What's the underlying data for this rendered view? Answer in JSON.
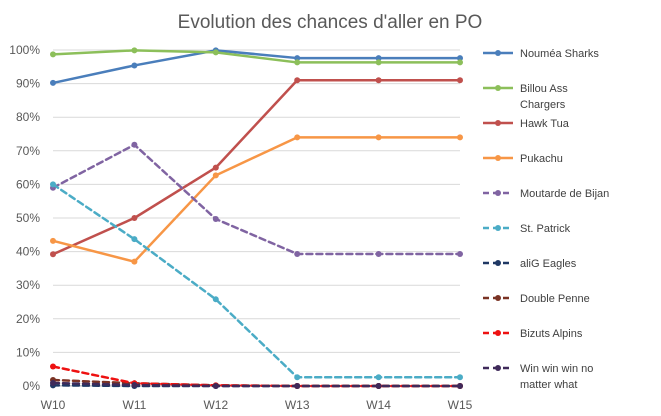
{
  "chart_data": {
    "type": "line",
    "title": "Evolution des chances d'aller en PO",
    "xlabel": "",
    "ylabel": "",
    "categories": [
      "W10",
      "W11",
      "W12",
      "W13",
      "W14",
      "W15"
    ],
    "ylim": [
      0,
      100
    ],
    "y_ticks": [
      "0%",
      "10%",
      "20%",
      "30%",
      "40%",
      "50%",
      "60%",
      "70%",
      "80%",
      "90%",
      "100%"
    ],
    "grid": "horizontal",
    "legend_position": "right",
    "series": [
      {
        "name": "Nouméa Sharks",
        "color": "#4a7ebb",
        "dashed": false,
        "values": [
          90.2,
          95.4,
          99.9,
          97.6,
          97.6,
          97.6
        ]
      },
      {
        "name": "Billou Ass Chargers",
        "color": "#8cbf5a",
        "dashed": false,
        "values": [
          98.7,
          99.9,
          99.3,
          96.3,
          96.3,
          96.3
        ]
      },
      {
        "name": "Hawk Tua",
        "color": "#c0504d",
        "dashed": false,
        "values": [
          39.2,
          50.0,
          65.0,
          91.0,
          91.0,
          91.0
        ]
      },
      {
        "name": "Pukachu",
        "color": "#f79646",
        "dashed": false,
        "values": [
          43.2,
          37.0,
          62.7,
          74.0,
          74.0,
          74.0
        ]
      },
      {
        "name": "Moutarde de Bijan",
        "color": "#8064a2",
        "dashed": true,
        "values": [
          59.0,
          71.8,
          49.7,
          39.3,
          39.3,
          39.3
        ]
      },
      {
        "name": "St. Patrick",
        "color": "#4bacc6",
        "dashed": true,
        "values": [
          60.0,
          43.7,
          25.8,
          2.6,
          2.6,
          2.6
        ]
      },
      {
        "name": "aliG Eagles",
        "color": "#1f3864",
        "dashed": true,
        "values": [
          0.2,
          0.0,
          0.0,
          0.0,
          0.0,
          0.0
        ]
      },
      {
        "name": "Double Penne",
        "color": "#7a3324",
        "dashed": true,
        "values": [
          1.8,
          0.8,
          0.2,
          0.0,
          0.0,
          0.0
        ]
      },
      {
        "name": "Bizuts Alpins",
        "color": "#ee1111",
        "dashed": true,
        "values": [
          5.8,
          0.8,
          0.2,
          0.0,
          0.0,
          0.0
        ]
      },
      {
        "name": "Win win win no matter what",
        "color": "#3f2a5a",
        "dashed": true,
        "values": [
          0.9,
          0.3,
          0.0,
          0.0,
          0.0,
          0.0
        ]
      }
    ]
  }
}
